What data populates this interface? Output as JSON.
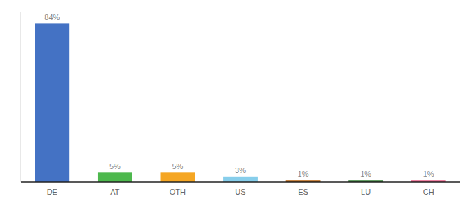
{
  "chart_data": {
    "type": "bar",
    "categories": [
      "DE",
      "AT",
      "OTH",
      "US",
      "ES",
      "LU",
      "CH"
    ],
    "values": [
      84,
      5,
      5,
      3,
      1,
      1,
      1
    ],
    "value_labels": [
      "84%",
      "5%",
      "5%",
      "3%",
      "1%",
      "1%",
      "1%"
    ],
    "colors": [
      "#4472c4",
      "#4db84d",
      "#f5a623",
      "#87ceeb",
      "#b35900",
      "#2d7a2d",
      "#e75480"
    ],
    "ylim": [
      0,
      90
    ],
    "data_labels": true,
    "tick_labels": "x",
    "grid": false
  }
}
